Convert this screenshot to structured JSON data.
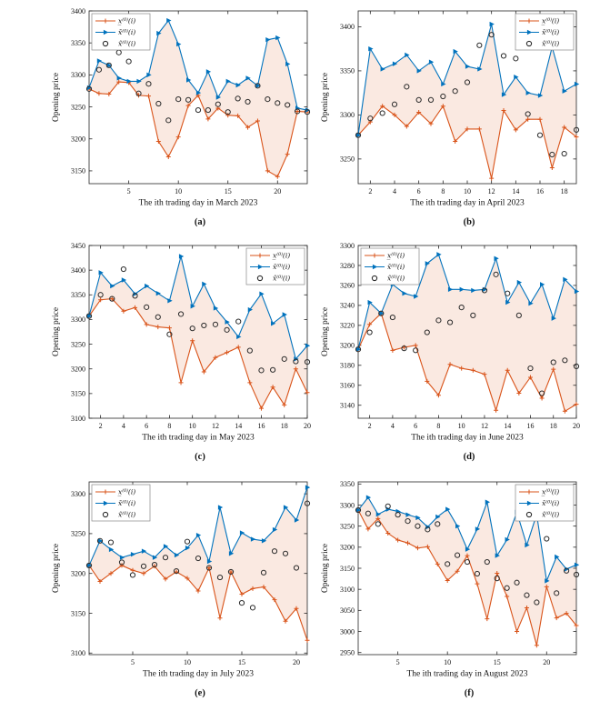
{
  "page": {
    "background": "#ffffff"
  },
  "colors": {
    "lower": "#D95319",
    "upper": "#0072BD",
    "hat": "#2b2b2b",
    "band_fill": "rgba(217,83,25,0.13)",
    "axis": "#262626",
    "legend_border": "#888888"
  },
  "legend": {
    "lower_label": "x̲⁽⁰⁾(i)",
    "upper_label": "x̄⁽⁰⁾(i)",
    "hat_label": "x̂⁽⁰⁾(i)"
  },
  "chart_data": [
    {
      "type": "line",
      "caption": "(a)",
      "xlabel": "The ith trading day in March 2023",
      "ylabel": "Opening price",
      "xlim": [
        1,
        23
      ],
      "xticks": [
        5,
        10,
        15,
        20
      ],
      "ylim": [
        3130,
        3400
      ],
      "yticks": [
        3150,
        3200,
        3250,
        3300,
        3350,
        3400
      ],
      "legend_position": "top-left",
      "x": [
        1,
        2,
        3,
        4,
        5,
        6,
        7,
        8,
        9,
        10,
        11,
        12,
        13,
        14,
        15,
        16,
        17,
        18,
        19,
        20,
        21,
        22,
        23
      ],
      "series": [
        {
          "name": "x̲⁽⁰⁾(i)",
          "role": "lower",
          "values": [
            3278,
            3271,
            3270,
            3289,
            3288,
            3268,
            3267,
            3196,
            3172,
            3203,
            3252,
            3268,
            3231,
            3248,
            3237,
            3236,
            3218,
            3228,
            3150,
            3141,
            3176,
            3243,
            3242
          ]
        },
        {
          "name": "x̄⁽⁰⁾(i)",
          "role": "upper",
          "values": [
            3280,
            3322,
            3315,
            3295,
            3290,
            3290,
            3300,
            3365,
            3385,
            3348,
            3292,
            3272,
            3305,
            3265,
            3290,
            3284,
            3295,
            3283,
            3355,
            3358,
            3317,
            3248,
            3245
          ]
        },
        {
          "name": "x̂⁽⁰⁾(i)",
          "role": "hat",
          "values": [
            3278,
            3308,
            3315,
            3335,
            3321,
            3271,
            3286,
            3255,
            3229,
            3262,
            3261,
            3245,
            3245,
            3254,
            3242,
            3263,
            3258,
            3283,
            3262,
            3256,
            3253,
            3243,
            3242
          ]
        }
      ]
    },
    {
      "type": "line",
      "caption": "(b)",
      "xlabel": "The ith trading day in April 2023",
      "ylabel": "Opening price",
      "xlim": [
        1,
        19
      ],
      "xticks": [
        2,
        4,
        6,
        8,
        10,
        12,
        14,
        16,
        18
      ],
      "ylim": [
        3222,
        3418
      ],
      "yticks": [
        3250,
        3300,
        3350,
        3400
      ],
      "legend_position": "top-right",
      "x": [
        1,
        2,
        3,
        4,
        5,
        6,
        7,
        8,
        9,
        10,
        11,
        12,
        13,
        14,
        15,
        16,
        17,
        18,
        19
      ],
      "series": [
        {
          "name": "x̲⁽⁰⁾(i)",
          "role": "lower",
          "values": [
            3277,
            3292,
            3310,
            3300,
            3287,
            3303,
            3290,
            3310,
            3270,
            3284,
            3284,
            3228,
            3305,
            3283,
            3295,
            3295,
            3240,
            3286,
            3275
          ]
        },
        {
          "name": "x̄⁽⁰⁾(i)",
          "role": "upper",
          "values": [
            3277,
            3375,
            3352,
            3358,
            3368,
            3350,
            3360,
            3335,
            3372,
            3355,
            3352,
            3403,
            3323,
            3343,
            3325,
            3322,
            3377,
            3327,
            3335
          ]
        },
        {
          "name": "x̂⁽⁰⁾(i)",
          "role": "hat",
          "values": [
            3277,
            3296,
            3302,
            3312,
            3332,
            3317,
            3317,
            3321,
            3327,
            3337,
            3379,
            3391,
            3367,
            3364,
            3301,
            3277,
            3255,
            3256,
            3283
          ]
        }
      ]
    },
    {
      "type": "line",
      "caption": "(c)",
      "xlabel": "The ith trading day in May 2023",
      "ylabel": "Opening price",
      "xlim": [
        1,
        20
      ],
      "xticks": [
        2,
        4,
        6,
        8,
        10,
        12,
        14,
        16,
        18,
        20
      ],
      "ylim": [
        3100,
        3450
      ],
      "yticks": [
        3100,
        3150,
        3200,
        3250,
        3300,
        3350,
        3400,
        3450
      ],
      "legend_position": "top-right",
      "x": [
        1,
        2,
        3,
        4,
        5,
        6,
        7,
        8,
        9,
        10,
        11,
        12,
        13,
        14,
        15,
        16,
        17,
        18,
        19,
        20
      ],
      "series": [
        {
          "name": "x̲⁽⁰⁾(i)",
          "role": "lower",
          "values": [
            3307,
            3340,
            3342,
            3317,
            3324,
            3290,
            3285,
            3283,
            3172,
            3257,
            3194,
            3223,
            3233,
            3244,
            3172,
            3120,
            3163,
            3127,
            3200,
            3152
          ]
        },
        {
          "name": "x̄⁽⁰⁾(i)",
          "role": "upper",
          "values": [
            3307,
            3395,
            3368,
            3380,
            3352,
            3368,
            3353,
            3338,
            3428,
            3327,
            3372,
            3323,
            3295,
            3265,
            3320,
            3352,
            3292,
            3310,
            3220,
            3247
          ]
        },
        {
          "name": "x̂⁽⁰⁾(i)",
          "role": "hat",
          "values": [
            3307,
            3350,
            3342,
            3402,
            3348,
            3325,
            3305,
            3270,
            3311,
            3282,
            3288,
            3290,
            3279,
            3296,
            3237,
            3197,
            3198,
            3220,
            3215,
            3214
          ]
        }
      ]
    },
    {
      "type": "line",
      "caption": "(d)",
      "xlabel": "The ith trading day in June 2023",
      "ylabel": "Opening price",
      "xlim": [
        1,
        20
      ],
      "xticks": [
        2,
        4,
        6,
        8,
        10,
        12,
        14,
        16,
        18,
        20
      ],
      "ylim": [
        3127,
        3300
      ],
      "yticks": [
        3140,
        3160,
        3180,
        3200,
        3220,
        3240,
        3260,
        3280,
        3300
      ],
      "legend_position": "top-left",
      "x": [
        1,
        2,
        3,
        4,
        5,
        6,
        7,
        8,
        9,
        10,
        11,
        12,
        13,
        14,
        15,
        16,
        17,
        18,
        19,
        20
      ],
      "series": [
        {
          "name": "x̲⁽⁰⁾(i)",
          "role": "lower",
          "values": [
            3196,
            3221,
            3232,
            3195,
            3198,
            3200,
            3164,
            3150,
            3181,
            3177,
            3175,
            3171,
            3135,
            3175,
            3152,
            3168,
            3147,
            3176,
            3134,
            3141
          ]
        },
        {
          "name": "x̄⁽⁰⁾(i)",
          "role": "upper",
          "values": [
            3196,
            3243,
            3232,
            3261,
            3252,
            3249,
            3282,
            3291,
            3256,
            3256,
            3255,
            3256,
            3287,
            3243,
            3263,
            3242,
            3261,
            3227,
            3266,
            3254
          ]
        },
        {
          "name": "x̂⁽⁰⁾(i)",
          "role": "hat",
          "values": [
            3196,
            3213,
            3232,
            3228,
            3197,
            3195,
            3213,
            3225,
            3223,
            3238,
            3230,
            3255,
            3271,
            3252,
            3230,
            3177,
            3152,
            3183,
            3185,
            3179
          ]
        }
      ]
    },
    {
      "type": "line",
      "caption": "(e)",
      "xlabel": "The ith trading day in July 2023",
      "ylabel": "Opening price",
      "xlim": [
        1,
        21
      ],
      "xticks": [
        5,
        10,
        15,
        20
      ],
      "ylim": [
        3098,
        3315
      ],
      "yticks": [
        3100,
        3150,
        3200,
        3250,
        3300
      ],
      "legend_position": "top-left",
      "x": [
        1,
        2,
        3,
        4,
        5,
        6,
        7,
        8,
        9,
        10,
        11,
        12,
        13,
        14,
        15,
        16,
        17,
        18,
        19,
        20,
        21
      ],
      "series": [
        {
          "name": "x̲⁽⁰⁾(i)",
          "role": "lower",
          "values": [
            3210,
            3190,
            3200,
            3210,
            3204,
            3200,
            3209,
            3193,
            3202,
            3194,
            3178,
            3207,
            3144,
            3202,
            3174,
            3181,
            3183,
            3167,
            3140,
            3156,
            3116
          ]
        },
        {
          "name": "x̄⁽⁰⁾(i)",
          "role": "upper",
          "values": [
            3210,
            3241,
            3230,
            3220,
            3224,
            3228,
            3220,
            3234,
            3223,
            3232,
            3248,
            3215,
            3283,
            3225,
            3251,
            3243,
            3241,
            3255,
            3283,
            3267,
            3308
          ]
        },
        {
          "name": "x̂⁽⁰⁾(i)",
          "role": "hat",
          "values": [
            3210,
            3241,
            3239,
            3214,
            3198,
            3209,
            3211,
            3220,
            3203,
            3240,
            3219,
            3207,
            3195,
            3202,
            3163,
            3157,
            3201,
            3228,
            3225,
            3207,
            3288
          ]
        }
      ]
    },
    {
      "type": "line",
      "caption": "(f)",
      "xlabel": "The ith trading day in August 2023",
      "ylabel": "Opening price",
      "xlim": [
        1,
        23
      ],
      "xticks": [
        5,
        10,
        15,
        20
      ],
      "ylim": [
        2945,
        3355
      ],
      "yticks": [
        2950,
        3000,
        3050,
        3100,
        3150,
        3200,
        3250,
        3300,
        3350
      ],
      "legend_position": "top-right",
      "x": [
        1,
        2,
        3,
        4,
        5,
        6,
        7,
        8,
        9,
        10,
        11,
        12,
        13,
        14,
        15,
        16,
        17,
        18,
        19,
        20,
        21,
        22,
        23
      ],
      "series": [
        {
          "name": "x̲⁽⁰⁾(i)",
          "role": "lower",
          "values": [
            3288,
            3243,
            3268,
            3233,
            3217,
            3210,
            3198,
            3201,
            3160,
            3121,
            3143,
            3180,
            3113,
            3030,
            3138,
            3083,
            3000,
            3056,
            2967,
            3106,
            3032,
            3043,
            3014
          ]
        },
        {
          "name": "x̄⁽⁰⁾(i)",
          "role": "upper",
          "values": [
            3288,
            3318,
            3278,
            3290,
            3285,
            3277,
            3270,
            3248,
            3272,
            3290,
            3250,
            3195,
            3243,
            3307,
            3180,
            3218,
            3283,
            3205,
            3278,
            3120,
            3177,
            3148,
            3158
          ]
        },
        {
          "name": "x̂⁽⁰⁾(i)",
          "role": "hat",
          "values": [
            3288,
            3280,
            3255,
            3297,
            3277,
            3262,
            3250,
            3242,
            3255,
            3160,
            3181,
            3165,
            3137,
            3165,
            3126,
            3103,
            3116,
            3086,
            3069,
            3220,
            3091,
            3144,
            3135
          ]
        }
      ]
    }
  ]
}
